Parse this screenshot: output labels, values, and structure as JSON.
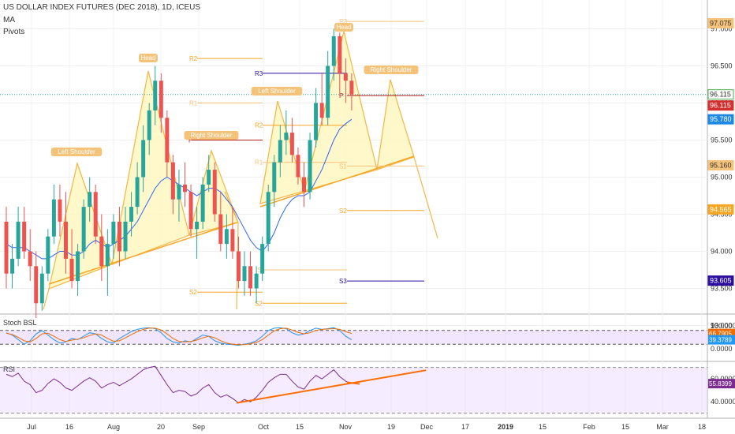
{
  "header": {
    "symbol_title": "US DOLLAR INDEX FUTURES (DEC 2018), 1D, ICEUS",
    "indicators": [
      "MA",
      "Pivots"
    ]
  },
  "panes": {
    "stoch_label": "Stoch BSL",
    "rsi_label": "RSI"
  },
  "annotations": {
    "left_shoulder_1": "Left Shoulder",
    "head_1": "Head",
    "right_shoulder_1": "Right Shoulder",
    "left_shoulder_2": "Left Shoulder",
    "head_2": "Head",
    "right_shoulder_2": "Right Shoulder"
  },
  "colors": {
    "bull": "#26a69a",
    "bear": "#ef5350",
    "pattern": "#f5b642",
    "pattern_fill": "#fff7c2",
    "trend": "#f5a623",
    "ma": "#2962ff",
    "pivot": "#f5a623",
    "r3": "#2c0f9e",
    "s2_red": "#b71c1c",
    "stoch_k": "#2196f3",
    "stoch_d": "#ef6c00",
    "rsi": "#7b2c8c",
    "rsi_trend": "#ff6d00",
    "band": "#e9d5ff"
  },
  "chart_data": [
    {
      "type": "candlestick",
      "title": "US DOLLAR INDEX FUTURES (DEC 2018), 1D, ICEUS",
      "ylim": [
        92.85,
        97.3
      ],
      "y_ticks": [
        93.0,
        93.5,
        94.0,
        94.5,
        95.0,
        95.5,
        96.0,
        96.5,
        97.0
      ],
      "x_tick_labels": [
        "Jul",
        "16",
        "Aug",
        "20",
        "Sep",
        "Oct",
        "15",
        "Nov",
        "19",
        "Dec",
        "17",
        "2019",
        "15",
        "Feb",
        "15",
        "Mar",
        "18"
      ],
      "price_badges": [
        {
          "value": "97.075",
          "color": "#f5c27a"
        },
        {
          "value": "96.115",
          "color": "#ffffff",
          "border": "#4caf50"
        },
        {
          "value": "96.115",
          "color": "#d32f2f"
        },
        {
          "value": "95.780",
          "color": "#1e88e5"
        },
        {
          "value": "95.160",
          "color": "#f5c27a"
        },
        {
          "value": "94.565",
          "color": "#f5a623"
        },
        {
          "value": "93.605",
          "color": "#2c0f9e"
        }
      ],
      "ohlc": [
        [
          94.4,
          94.6,
          93.5,
          93.7
        ],
        [
          93.7,
          94.1,
          93.5,
          93.9
        ],
        [
          93.9,
          94.6,
          93.8,
          94.4
        ],
        [
          94.4,
          94.6,
          93.9,
          94.0
        ],
        [
          94.0,
          94.3,
          93.6,
          93.8
        ],
        [
          93.8,
          94.0,
          93.1,
          93.3
        ],
        [
          93.3,
          93.8,
          93.2,
          93.7
        ],
        [
          93.7,
          94.3,
          93.6,
          94.2
        ],
        [
          94.2,
          94.9,
          94.1,
          94.7
        ],
        [
          94.7,
          94.9,
          94.2,
          94.4
        ],
        [
          94.4,
          94.8,
          93.7,
          93.9
        ],
        [
          93.9,
          94.3,
          93.5,
          93.6
        ],
        [
          93.6,
          94.1,
          93.4,
          94.0
        ],
        [
          94.0,
          94.7,
          93.9,
          94.6
        ],
        [
          94.6,
          95.0,
          94.4,
          94.8
        ],
        [
          94.8,
          94.9,
          94.1,
          94.2
        ],
        [
          94.2,
          94.5,
          93.6,
          93.8
        ],
        [
          93.8,
          94.3,
          93.4,
          94.1
        ],
        [
          94.1,
          94.5,
          93.9,
          94.4
        ],
        [
          94.4,
          94.6,
          93.8,
          94.0
        ],
        [
          94.0,
          94.6,
          93.9,
          94.4
        ],
        [
          94.4,
          94.8,
          94.2,
          94.6
        ],
        [
          94.6,
          95.2,
          94.5,
          95.0
        ],
        [
          95.0,
          95.7,
          94.8,
          95.5
        ],
        [
          95.5,
          96.0,
          95.3,
          95.9
        ],
        [
          95.9,
          96.5,
          95.7,
          96.3
        ],
        [
          96.3,
          96.4,
          95.6,
          95.8
        ],
        [
          95.8,
          95.9,
          95.0,
          95.2
        ],
        [
          95.2,
          95.3,
          94.5,
          94.7
        ],
        [
          94.7,
          95.1,
          94.4,
          94.9
        ],
        [
          94.9,
          95.2,
          94.6,
          94.8
        ],
        [
          94.8,
          94.9,
          94.2,
          94.3
        ],
        [
          94.3,
          94.6,
          93.9,
          94.4
        ],
        [
          94.4,
          95.0,
          94.3,
          94.9
        ],
        [
          94.9,
          95.3,
          94.8,
          95.1
        ],
        [
          95.1,
          95.2,
          94.4,
          94.5
        ],
        [
          94.5,
          94.8,
          94.0,
          94.1
        ],
        [
          94.1,
          94.5,
          93.9,
          94.3
        ],
        [
          94.3,
          94.6,
          93.9,
          94.0
        ],
        [
          94.0,
          94.2,
          93.5,
          93.6
        ],
        [
          93.6,
          94.0,
          93.4,
          93.8
        ],
        [
          93.8,
          94.0,
          93.4,
          93.5
        ],
        [
          93.5,
          93.8,
          93.3,
          93.7
        ],
        [
          93.7,
          94.2,
          93.6,
          94.1
        ],
        [
          94.1,
          94.9,
          94.0,
          94.8
        ],
        [
          94.8,
          95.3,
          94.6,
          95.2
        ],
        [
          95.2,
          95.7,
          95.0,
          95.5
        ],
        [
          95.5,
          95.9,
          95.3,
          95.6
        ],
        [
          95.6,
          95.8,
          95.2,
          95.3
        ],
        [
          95.3,
          95.4,
          94.9,
          95.0
        ],
        [
          95.0,
          95.2,
          94.6,
          94.8
        ],
        [
          94.8,
          95.6,
          94.7,
          95.5
        ],
        [
          95.5,
          96.2,
          95.4,
          96.0
        ],
        [
          96.0,
          96.4,
          95.7,
          95.8
        ],
        [
          95.8,
          96.7,
          95.7,
          96.5
        ],
        [
          96.5,
          97.0,
          96.3,
          96.9
        ],
        [
          96.9,
          96.95,
          96.1,
          96.4
        ],
        [
          96.4,
          96.6,
          96.0,
          96.3
        ],
        [
          96.3,
          96.4,
          95.9,
          96.115
        ]
      ],
      "ma": [
        94.1,
        94.05,
        94.05,
        94.05,
        94.0,
        93.95,
        93.9,
        93.9,
        93.95,
        94.0,
        94.0,
        93.95,
        93.95,
        94.0,
        94.1,
        94.15,
        94.1,
        94.05,
        94.1,
        94.15,
        94.2,
        94.3,
        94.4,
        94.55,
        94.7,
        94.85,
        94.95,
        95.0,
        94.95,
        94.9,
        94.85,
        94.8,
        94.75,
        94.8,
        94.85,
        94.85,
        94.8,
        94.7,
        94.6,
        94.45,
        94.3,
        94.15,
        94.05,
        94.0,
        94.1,
        94.25,
        94.45,
        94.6,
        94.7,
        94.75,
        94.75,
        94.8,
        94.95,
        95.1,
        95.3,
        95.5,
        95.65,
        95.72,
        95.78
      ],
      "pivot_levels": [
        {
          "label": "R2",
          "value": 96.6
        },
        {
          "label": "R1",
          "value": 96.0
        },
        {
          "label": "P",
          "value": 95.5
        },
        {
          "label": "S1",
          "value": 93.75
        },
        {
          "label": "S2",
          "value": 93.45
        },
        {
          "label": "R3",
          "value": 96.4
        },
        {
          "label": "R2",
          "value": 95.7
        },
        {
          "label": "R1",
          "value": 95.2
        },
        {
          "label": "S1",
          "value": 95.15
        },
        {
          "label": "S2",
          "value": 94.55
        },
        {
          "label": "S2",
          "value": 93.3
        },
        {
          "label": "S3",
          "value": 93.6
        },
        {
          "label": "P",
          "value": 96.1
        },
        {
          "label": "R3",
          "value": 97.1
        }
      ]
    },
    {
      "type": "line",
      "title": "Stoch BSL",
      "ylim": [
        0,
        100
      ],
      "y_ticks": [
        0.0,
        100.0
      ],
      "y_tick_labels": [
        "0.0000",
        "100.0000"
      ],
      "badges": [
        {
          "value": "66.7905",
          "color": "#ef6c00"
        },
        {
          "value": "39.3789",
          "color": "#2196f3"
        }
      ],
      "series": [
        {
          "name": "K",
          "values": [
            70,
            60,
            40,
            20,
            35,
            65,
            80,
            60,
            40,
            25,
            30,
            45,
            40,
            55,
            70,
            65,
            45,
            30,
            25,
            45,
            60,
            75,
            85,
            90,
            92,
            88,
            70,
            45,
            30,
            25,
            35,
            30,
            45,
            60,
            55,
            35,
            25,
            20,
            18,
            15,
            20,
            25,
            35,
            55,
            80,
            90,
            92,
            88,
            70,
            60,
            65,
            80,
            90,
            85,
            88,
            92,
            80,
            55,
            39.4
          ]
        },
        {
          "name": "D",
          "values": [
            68,
            62,
            50,
            35,
            30,
            45,
            65,
            68,
            55,
            40,
            32,
            38,
            42,
            48,
            58,
            65,
            60,
            45,
            33,
            35,
            48,
            62,
            75,
            85,
            90,
            90,
            82,
            65,
            45,
            32,
            30,
            32,
            38,
            48,
            55,
            48,
            35,
            25,
            20,
            18,
            18,
            22,
            28,
            40,
            60,
            78,
            88,
            90,
            82,
            72,
            65,
            70,
            80,
            85,
            86,
            88,
            85,
            75,
            66.8
          ]
        }
      ]
    },
    {
      "type": "line",
      "title": "RSI",
      "ylim": [
        28,
        75
      ],
      "y_ticks": [
        40.0,
        60.0
      ],
      "y_tick_labels": [
        "40.0000",
        "60.0000"
      ],
      "badges": [
        {
          "value": "55.8399",
          "color": "#7b2c8c"
        }
      ],
      "series": [
        {
          "name": "RSI",
          "values": [
            64,
            62,
            65,
            58,
            55,
            48,
            50,
            56,
            60,
            57,
            52,
            50,
            54,
            58,
            61,
            58,
            52,
            55,
            57,
            54,
            57,
            60,
            64,
            68,
            70,
            71,
            63,
            55,
            48,
            50,
            49,
            45,
            47,
            52,
            55,
            48,
            44,
            46,
            43,
            39,
            42,
            40,
            44,
            50,
            57,
            61,
            64,
            64,
            58,
            53,
            51,
            58,
            63,
            60,
            64,
            68,
            62,
            58,
            55.8
          ]
        }
      ]
    }
  ]
}
